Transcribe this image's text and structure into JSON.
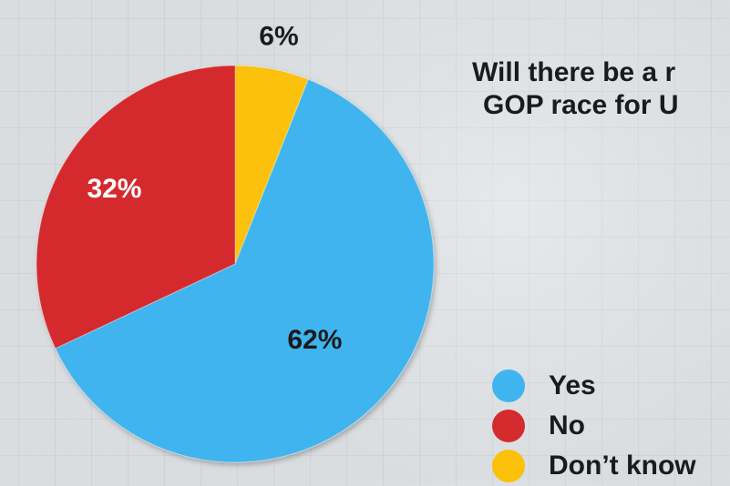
{
  "chart_data": {
    "type": "pie",
    "title_lines": [
      "Will there be a r",
      "GOP race for U"
    ],
    "slices": [
      {
        "name": "Yes",
        "value": 62,
        "label": "62%",
        "color": "#40b4ee"
      },
      {
        "name": "No",
        "value": 32,
        "label": "32%",
        "color": "#d42b2e"
      },
      {
        "name": "Don’t know",
        "value": 6,
        "label": "6%",
        "color": "#fbc10a"
      }
    ],
    "legend_position": "bottom-right"
  }
}
